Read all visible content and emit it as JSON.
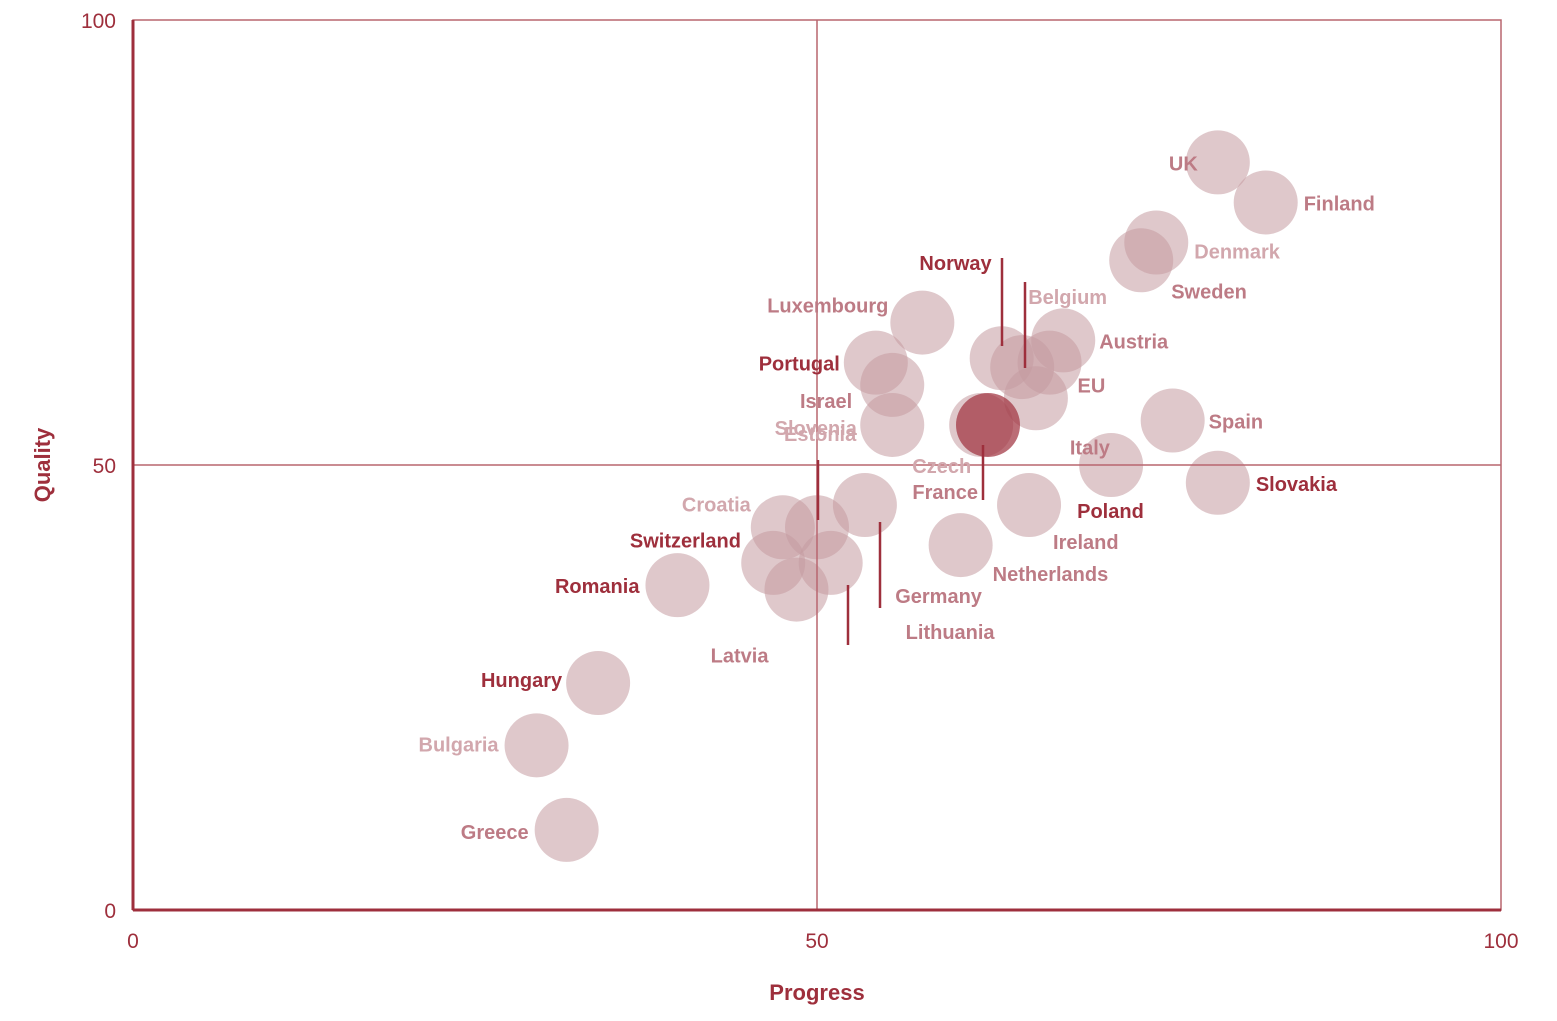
{
  "chart_data": {
    "type": "scatter",
    "xlabel": "Progress",
    "ylabel": "Quality",
    "xlim": [
      0,
      100
    ],
    "ylim": [
      0,
      100
    ],
    "xticks": [
      "0",
      "50",
      "100"
    ],
    "yticks": [
      "0",
      "50",
      "100"
    ],
    "reference_lines": {
      "x": 50,
      "y": 50
    },
    "grid": false,
    "colors": {
      "accent": "#9e2f3c",
      "bubble": "#c59aa0",
      "bubble_dark": "#9e2f3c",
      "label_light": "#d2a7ad",
      "label_mid": "#bd7b85",
      "label_dark": "#9e2f3c"
    },
    "points": [
      {
        "name": "UK",
        "x": 79.3,
        "y": 84.0,
        "tone": "mid",
        "label_anchor": "end"
      },
      {
        "name": "Finland",
        "x": 82.8,
        "y": 79.5,
        "tone": "mid",
        "label_anchor": "start"
      },
      {
        "name": "Denmark",
        "x": 74.8,
        "y": 75.0,
        "tone": "light",
        "label_anchor": "start"
      },
      {
        "name": "Sweden",
        "x": 73.7,
        "y": 73.0,
        "tone": "mid",
        "label_anchor": "start"
      },
      {
        "name": "Norway",
        "x": 63.5,
        "y": 62.0,
        "tone": "dark",
        "label_anchor": "end"
      },
      {
        "name": "Belgium",
        "x": 65.0,
        "y": 61.0,
        "tone": "light",
        "label_anchor": "start"
      },
      {
        "name": "Luxembourg",
        "x": 57.7,
        "y": 66.0,
        "tone": "mid",
        "label_anchor": "end"
      },
      {
        "name": "Austria",
        "x": 68.0,
        "y": 64.0,
        "tone": "mid",
        "label_anchor": "start"
      },
      {
        "name": "Portugal",
        "x": 54.3,
        "y": 61.5,
        "tone": "dark",
        "label_anchor": "end"
      },
      {
        "name": "EU",
        "x": 67.0,
        "y": 61.5,
        "tone": "mid",
        "label_anchor": "start"
      },
      {
        "name": "Israel",
        "x": 55.5,
        "y": 59.0,
        "tone": "mid",
        "label_anchor": "end"
      },
      {
        "name": "Italy",
        "x": 66.0,
        "y": 57.5,
        "tone": "mid",
        "label_anchor": "start"
      },
      {
        "name": "Estonia",
        "x": 55.5,
        "y": 54.5,
        "tone": "light",
        "label_anchor": "end"
      },
      {
        "name": "Czech",
        "x": 62.0,
        "y": 54.5,
        "tone": "light",
        "label_anchor": "end"
      },
      {
        "name": "France",
        "x": 62.5,
        "y": 54.5,
        "tone": "mid",
        "label_anchor": "end",
        "dark_bubble": true
      },
      {
        "name": "Spain",
        "x": 76.0,
        "y": 55.0,
        "tone": "mid",
        "label_anchor": "start"
      },
      {
        "name": "Poland",
        "x": 71.5,
        "y": 50.0,
        "tone": "dark",
        "label_anchor": "start"
      },
      {
        "name": "Slovakia",
        "x": 79.3,
        "y": 48.0,
        "tone": "dark",
        "label_anchor": "start"
      },
      {
        "name": "Slovenia",
        "x": 53.5,
        "y": 45.5,
        "tone": "light",
        "label_anchor": "end"
      },
      {
        "name": "Ireland",
        "x": 65.5,
        "y": 45.5,
        "tone": "mid",
        "label_anchor": "start"
      },
      {
        "name": "Croatia",
        "x": 47.5,
        "y": 43.0,
        "tone": "light",
        "label_anchor": "end"
      },
      {
        "name": "Switzerland",
        "x": 50.0,
        "y": 43.0,
        "tone": "dark",
        "label_anchor": "end"
      },
      {
        "name": "Netherlands",
        "x": 60.5,
        "y": 41.0,
        "tone": "mid",
        "label_anchor": "start"
      },
      {
        "name": "Germany",
        "x": 46.8,
        "y": 39.0,
        "tone": "mid",
        "label_anchor": "start"
      },
      {
        "name": "Lithuania",
        "x": 51.0,
        "y": 39.0,
        "tone": "mid",
        "label_anchor": "start"
      },
      {
        "name": "Romania",
        "x": 39.8,
        "y": 36.5,
        "tone": "dark",
        "label_anchor": "end"
      },
      {
        "name": "Latvia",
        "x": 48.5,
        "y": 36.0,
        "tone": "mid",
        "label_anchor": "end"
      },
      {
        "name": "Hungary",
        "x": 34.0,
        "y": 25.5,
        "tone": "dark",
        "label_anchor": "end"
      },
      {
        "name": "Bulgaria",
        "x": 29.5,
        "y": 18.5,
        "tone": "light",
        "label_anchor": "end"
      },
      {
        "name": "Greece",
        "x": 31.7,
        "y": 9.0,
        "tone": "mid",
        "label_anchor": "end"
      }
    ]
  }
}
